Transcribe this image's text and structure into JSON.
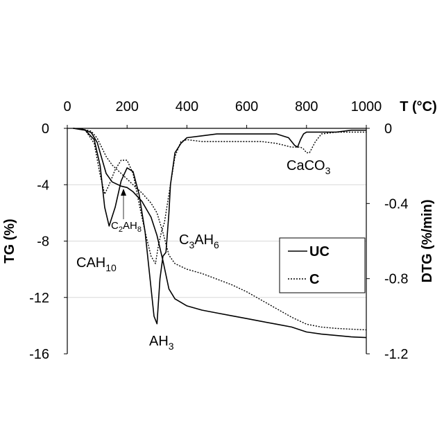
{
  "chart_data": {
    "type": "line",
    "title": "",
    "xlabel": "T (°C)",
    "ylabel_left": "TG (%)",
    "ylabel_right": "DTG (%/min)",
    "xlim": [
      0,
      1000
    ],
    "ylim_left": [
      -16,
      0
    ],
    "ylim_right": [
      -1.2,
      0
    ],
    "x_ticks": [
      0,
      200,
      400,
      600,
      800,
      1000
    ],
    "x_tick_labels": [
      "0",
      "200",
      "400",
      "600",
      "800",
      "1000"
    ],
    "y_left_ticks": [
      0,
      -4,
      -8,
      -12,
      -16
    ],
    "y_left_tick_labels": [
      "0",
      "-4",
      "-8",
      "-12",
      "-16"
    ],
    "y_right_ticks": [
      0,
      -0.4,
      -0.8,
      -1.2
    ],
    "y_right_tick_labels": [
      "0",
      "-0.4",
      "-0.8",
      "-1.2"
    ],
    "grid": "horizontal",
    "legend": {
      "position": "right-center",
      "entries": [
        {
          "name": "UC",
          "style": "solid"
        },
        {
          "name": "C",
          "style": "dotted"
        }
      ]
    },
    "annotations": [
      {
        "base": "CAH",
        "sub": "10"
      },
      {
        "base": "C",
        "sub": "2",
        "base2": "AH",
        "sub2": "8"
      },
      {
        "base": "AH",
        "sub": "3"
      },
      {
        "base": "C",
        "sub": "3",
        "base2": "AH",
        "sub2": "6"
      },
      {
        "base": "CaCO",
        "sub": "3"
      }
    ],
    "series": [
      {
        "name": "UC",
        "kind": "TG",
        "axis": "left",
        "style": "solid",
        "x": [
          20,
          50,
          80,
          100,
          130,
          150,
          180,
          200,
          220,
          250,
          280,
          300,
          320,
          340,
          360,
          400,
          450,
          500,
          550,
          600,
          650,
          700,
          750,
          800,
          850,
          900,
          950,
          1000
        ],
        "y": [
          0,
          -0.05,
          -0.3,
          -1.0,
          -3.2,
          -3.8,
          -4.1,
          -4.2,
          -4.5,
          -5.2,
          -6.3,
          -7.6,
          -9.4,
          -11.4,
          -12.1,
          -12.6,
          -12.9,
          -13.1,
          -13.3,
          -13.5,
          -13.7,
          -13.9,
          -14.1,
          -14.45,
          -14.6,
          -14.7,
          -14.8,
          -14.85
        ]
      },
      {
        "name": "C",
        "kind": "TG",
        "axis": "left",
        "style": "dotted",
        "x": [
          20,
          50,
          80,
          100,
          130,
          150,
          180,
          200,
          220,
          250,
          280,
          300,
          320,
          340,
          360,
          400,
          450,
          500,
          550,
          600,
          650,
          700,
          750,
          800,
          850,
          900,
          950,
          1000
        ],
        "y": [
          0,
          -0.05,
          -0.2,
          -0.7,
          -2.0,
          -2.6,
          -3.2,
          -3.6,
          -4.0,
          -4.6,
          -5.3,
          -6.0,
          -7.4,
          -9.0,
          -9.6,
          -10.0,
          -10.3,
          -10.7,
          -11.1,
          -11.6,
          -12.2,
          -12.8,
          -13.4,
          -13.9,
          -14.1,
          -14.2,
          -14.25,
          -14.3
        ]
      },
      {
        "name": "UC",
        "kind": "DTG",
        "axis": "right",
        "style": "solid",
        "x": [
          20,
          60,
          90,
          110,
          125,
          140,
          160,
          180,
          200,
          220,
          240,
          260,
          280,
          290,
          300,
          310,
          320,
          330,
          340,
          345,
          360,
          380,
          400,
          450,
          500,
          600,
          700,
          740,
          760,
          770,
          780,
          790,
          800,
          850,
          900,
          950,
          1000
        ],
        "y": [
          0,
          -0.01,
          -0.06,
          -0.2,
          -0.42,
          -0.52,
          -0.42,
          -0.28,
          -0.21,
          -0.23,
          -0.35,
          -0.55,
          -0.85,
          -1.0,
          -1.04,
          -0.8,
          -0.68,
          -0.66,
          -0.45,
          -0.3,
          -0.13,
          -0.08,
          -0.05,
          -0.04,
          -0.03,
          -0.03,
          -0.03,
          -0.05,
          -0.09,
          -0.1,
          -0.06,
          -0.03,
          -0.02,
          -0.02,
          -0.02,
          -0.01,
          -0.01
        ]
      },
      {
        "name": "C",
        "kind": "DTG",
        "axis": "right",
        "style": "dotted",
        "x": [
          20,
          60,
          90,
          110,
          125,
          140,
          160,
          180,
          200,
          220,
          240,
          260,
          280,
          295,
          305,
          315,
          325,
          340,
          360,
          380,
          400,
          450,
          500,
          550,
          600,
          650,
          700,
          750,
          780,
          790,
          800,
          810,
          830,
          850,
          900,
          950,
          1000
        ],
        "y": [
          0,
          -0.01,
          -0.08,
          -0.25,
          -0.35,
          -0.3,
          -0.22,
          -0.17,
          -0.17,
          -0.24,
          -0.4,
          -0.55,
          -0.68,
          -0.72,
          -0.62,
          -0.55,
          -0.5,
          -0.35,
          -0.15,
          -0.07,
          -0.06,
          -0.07,
          -0.07,
          -0.07,
          -0.07,
          -0.07,
          -0.08,
          -0.1,
          -0.1,
          -0.11,
          -0.13,
          -0.13,
          -0.07,
          -0.03,
          -0.02,
          -0.02,
          -0.02
        ]
      }
    ]
  }
}
